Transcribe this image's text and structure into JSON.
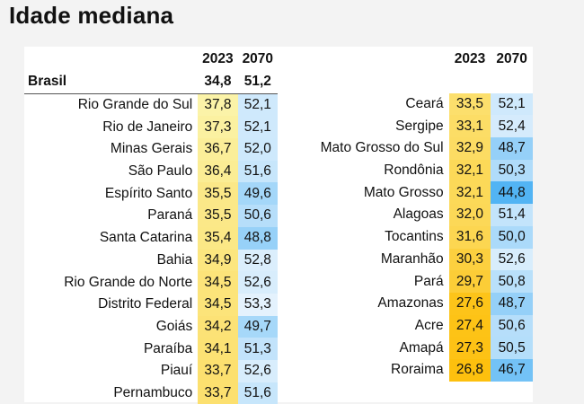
{
  "title": "Idade mediana",
  "headers": {
    "y2023": "2023",
    "y2070": "2070"
  },
  "brasil": {
    "name": "Brasil",
    "y2023": "34,8",
    "y2070": "51,2"
  },
  "left": [
    {
      "name": "Rio Grande do Sul",
      "y2023": "37,8",
      "y2070": "52,1"
    },
    {
      "name": "Rio de Janeiro",
      "y2023": "37,3",
      "y2070": "52,1"
    },
    {
      "name": "Minas Gerais",
      "y2023": "36,7",
      "y2070": "52,0"
    },
    {
      "name": "São Paulo",
      "y2023": "36,4",
      "y2070": "51,6"
    },
    {
      "name": "Espírito Santo",
      "y2023": "35,5",
      "y2070": "49,6"
    },
    {
      "name": "Paraná",
      "y2023": "35,5",
      "y2070": "50,6"
    },
    {
      "name": "Santa Catarina",
      "y2023": "35,4",
      "y2070": "48,8"
    },
    {
      "name": "Bahia",
      "y2023": "34,9",
      "y2070": "52,8"
    },
    {
      "name": "Rio Grande do Norte",
      "y2023": "34,5",
      "y2070": "52,6"
    },
    {
      "name": "Distrito Federal",
      "y2023": "34,5",
      "y2070": "53,3"
    },
    {
      "name": "Goiás",
      "y2023": "34,2",
      "y2070": "49,7"
    },
    {
      "name": "Paraíba",
      "y2023": "34,1",
      "y2070": "51,3"
    },
    {
      "name": "Piauí",
      "y2023": "33,7",
      "y2070": "52,6"
    },
    {
      "name": "Pernambuco",
      "y2023": "33,7",
      "y2070": "51,6"
    }
  ],
  "right": [
    {
      "name": "Ceará",
      "y2023": "33,5",
      "y2070": "52,1"
    },
    {
      "name": "Sergipe",
      "y2023": "33,1",
      "y2070": "52,4"
    },
    {
      "name": "Mato Grosso do Sul",
      "y2023": "32,9",
      "y2070": "48,7"
    },
    {
      "name": "Rondônia",
      "y2023": "32,1",
      "y2070": "50,3"
    },
    {
      "name": "Mato Grosso",
      "y2023": "32,1",
      "y2070": "44,8"
    },
    {
      "name": "Alagoas",
      "y2023": "32,0",
      "y2070": "51,4"
    },
    {
      "name": "Tocantins",
      "y2023": "31,6",
      "y2070": "50,0"
    },
    {
      "name": "Maranhão",
      "y2023": "30,3",
      "y2070": "52,6"
    },
    {
      "name": "Pará",
      "y2023": "29,7",
      "y2070": "50,8"
    },
    {
      "name": "Amazonas",
      "y2023": "27,6",
      "y2070": "48,7"
    },
    {
      "name": "Acre",
      "y2023": "27,4",
      "y2070": "50,6"
    },
    {
      "name": "Amapá",
      "y2023": "27,3",
      "y2070": "50,5"
    },
    {
      "name": "Roraima",
      "y2023": "26,8",
      "y2070": "46,7"
    }
  ],
  "colors": {
    "yellow_light": "#fbf3a8",
    "yellow_dark": "#fdc00e",
    "blue_light": "#e4f2fd",
    "blue_dark": "#52b4f4"
  }
}
